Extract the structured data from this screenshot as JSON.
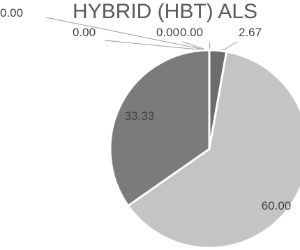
{
  "chart_data": {
    "type": "pie",
    "title": "HYBRID (HBT) ALS",
    "values": [
      0.0,
      2.67,
      60.0,
      33.33,
      0.0,
      0.0,
      0.0
    ],
    "labels": [
      "0.00",
      "2.67",
      "60.00",
      "33.33",
      "0.00",
      "0.00",
      "0.00"
    ],
    "colors": [
      "#8a8a8a",
      "#6d6d6d",
      "#c4c4c4",
      "#7b7b7b",
      "#999999",
      "#aaaaaa",
      "#b5b5b5"
    ],
    "legend": "none"
  }
}
